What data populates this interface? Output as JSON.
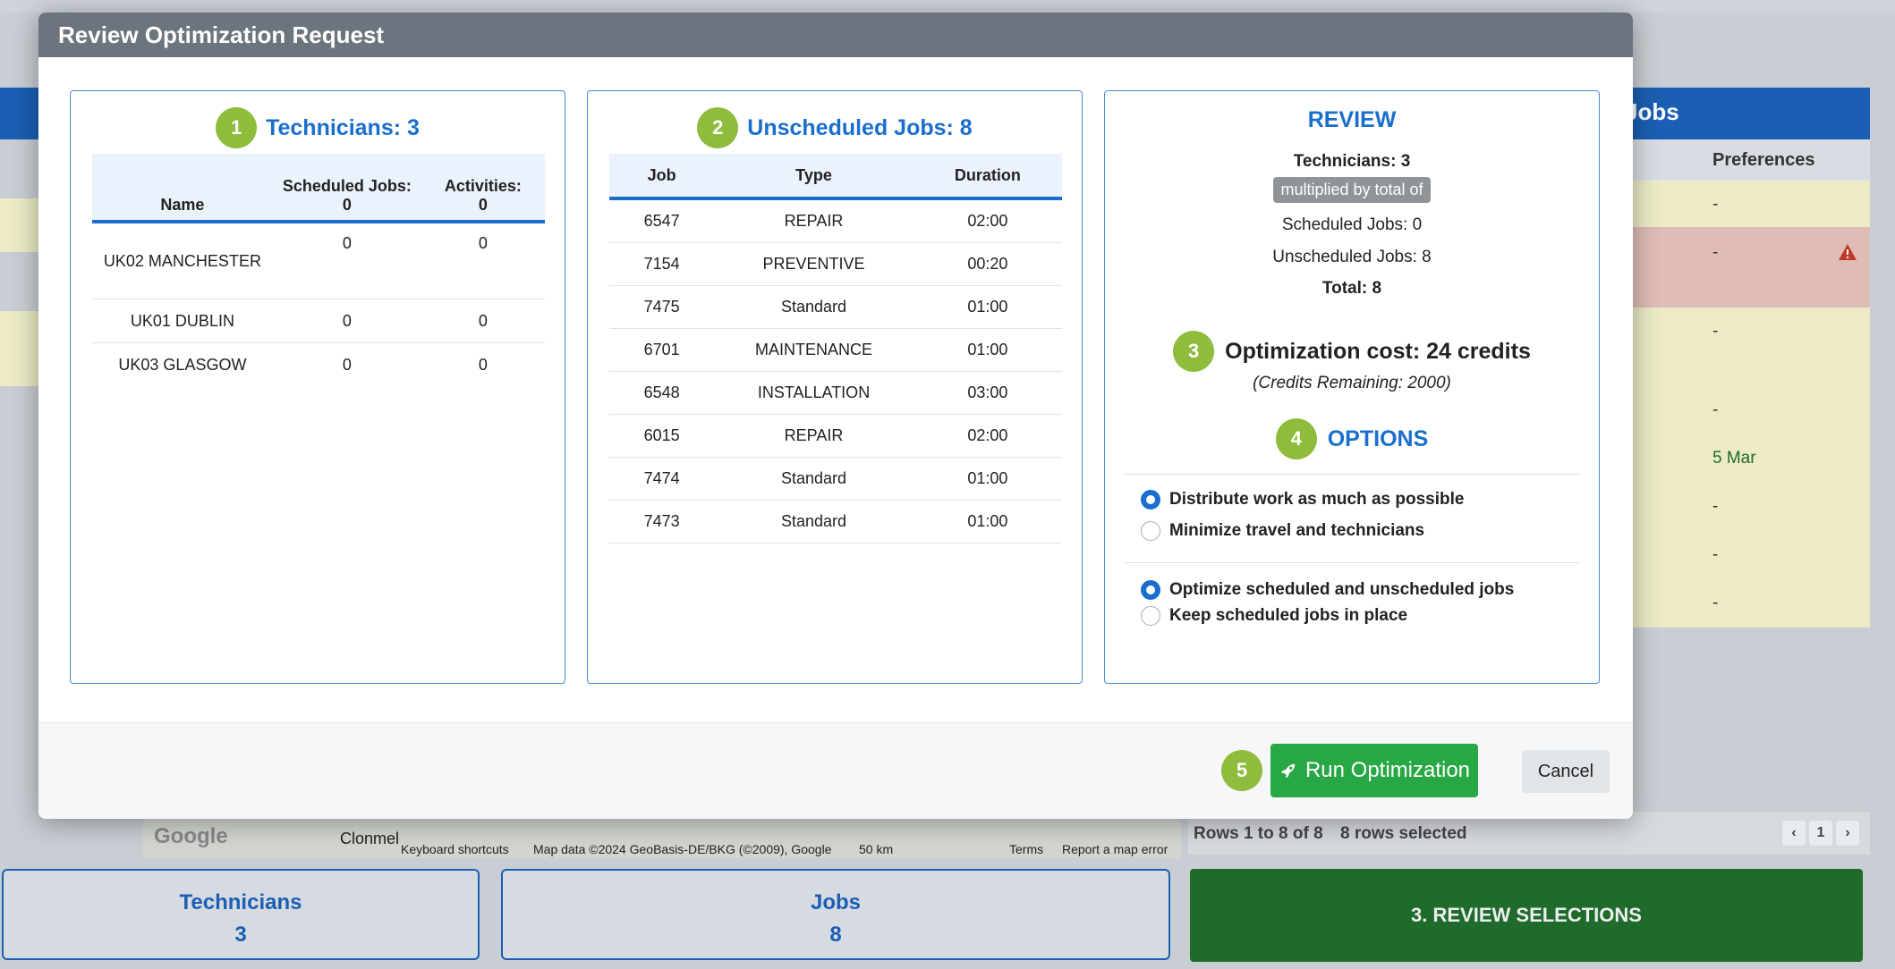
{
  "background": {
    "nav_text": "",
    "right_panel": {
      "title": "Jobs",
      "column_preferences": "Preferences",
      "rows": [
        "-",
        "-",
        "-",
        "-",
        "5 Mar",
        "-",
        "-",
        "-"
      ]
    },
    "map_credits": {
      "google": "Google",
      "place": "Clonmel",
      "shortcuts": "Keyboard shortcuts",
      "map_data": "Map data ©2024 GeoBasis-DE/BKG (©2009), Google",
      "scale": "50 km",
      "terms": "Terms",
      "report": "Report a map error"
    },
    "table_footer": {
      "rows_info": "Rows 1 to 8 of 8",
      "selected_info": "8 rows selected",
      "page": "1"
    },
    "cards": {
      "technicians_label": "Technicians",
      "technicians_count": "3",
      "jobs_label": "Jobs",
      "jobs_count": "8",
      "review_button": "3. REVIEW SELECTIONS"
    }
  },
  "modal": {
    "title": "Review Optimization Request",
    "technicians_panel": {
      "step": "1",
      "title": "Technicians: 3",
      "headers": [
        "Name",
        "Scheduled Jobs: 0",
        "Activities: 0"
      ],
      "rows": [
        {
          "name": "UK02 MANCHESTER",
          "scheduled": "0",
          "activities": "0"
        },
        {
          "name": "UK01 DUBLIN",
          "scheduled": "0",
          "activities": "0"
        },
        {
          "name": "UK03 GLASGOW",
          "scheduled": "0",
          "activities": "0"
        }
      ]
    },
    "jobs_panel": {
      "step": "2",
      "title": "Unscheduled Jobs: 8",
      "headers": [
        "Job",
        "Type",
        "Duration"
      ],
      "rows": [
        {
          "job": "6547",
          "type": "REPAIR",
          "duration": "02:00"
        },
        {
          "job": "7154",
          "type": "PREVENTIVE",
          "duration": "00:20"
        },
        {
          "job": "7475",
          "type": "Standard",
          "duration": "01:00"
        },
        {
          "job": "6701",
          "type": "MAINTENANCE",
          "duration": "01:00"
        },
        {
          "job": "6548",
          "type": "INSTALLATION",
          "duration": "03:00"
        },
        {
          "job": "6015",
          "type": "REPAIR",
          "duration": "02:00"
        },
        {
          "job": "7474",
          "type": "Standard",
          "duration": "01:00"
        },
        {
          "job": "7473",
          "type": "Standard",
          "duration": "01:00"
        }
      ]
    },
    "review_panel": {
      "title": "REVIEW",
      "technicians": "Technicians: 3",
      "multiplied": "multiplied by total of",
      "scheduled": "Scheduled Jobs: 0",
      "unscheduled": "Unscheduled Jobs: 8",
      "total": "Total: 8",
      "cost_step": "3",
      "cost": "Optimization cost: 24 credits",
      "credits_remaining": "(Credits Remaining: 2000)",
      "options_step": "4",
      "options_title": "OPTIONS",
      "group1": [
        {
          "label": "Distribute work as much as possible",
          "selected": true
        },
        {
          "label": "Minimize travel and technicians",
          "selected": false
        }
      ],
      "group2": [
        {
          "label": "Optimize scheduled and unscheduled jobs",
          "selected": true
        },
        {
          "label": "Keep scheduled jobs in place",
          "selected": false
        }
      ]
    },
    "footer": {
      "run_step": "5",
      "run_label": "Run Optimization",
      "cancel_label": "Cancel"
    }
  }
}
